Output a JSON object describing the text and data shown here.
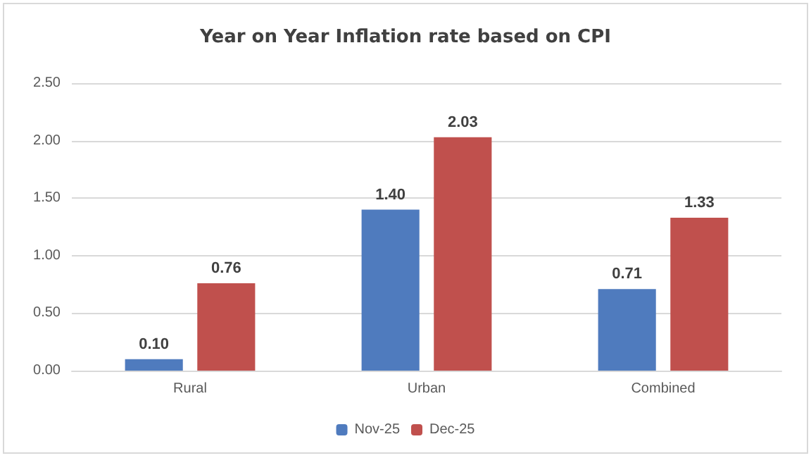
{
  "chart_data": {
    "type": "bar",
    "title": "Year on Year Inflation rate based on CPI",
    "categories": [
      "Rural",
      "Urban",
      "Combined"
    ],
    "series": [
      {
        "name": "Nov-25",
        "color": "#4f7bbe",
        "values": [
          0.1,
          1.4,
          0.71
        ],
        "value_labels": [
          "0.10",
          "1.40",
          "0.71"
        ]
      },
      {
        "name": "Dec-25",
        "color": "#c0504d",
        "values": [
          0.76,
          2.03,
          1.33
        ],
        "value_labels": [
          "0.76",
          "2.03",
          "1.33"
        ]
      }
    ],
    "ylim": [
      0,
      2.5
    ],
    "yticks": [
      {
        "value": 0,
        "label": "0.00"
      },
      {
        "value": 0.5,
        "label": "0.50"
      },
      {
        "value": 1,
        "label": "1.00"
      },
      {
        "value": 1.5,
        "label": "1.50"
      },
      {
        "value": 2,
        "label": "2.00"
      },
      {
        "value": 2.5,
        "label": "2.50"
      }
    ],
    "grid": "y",
    "legend": "bottom"
  }
}
